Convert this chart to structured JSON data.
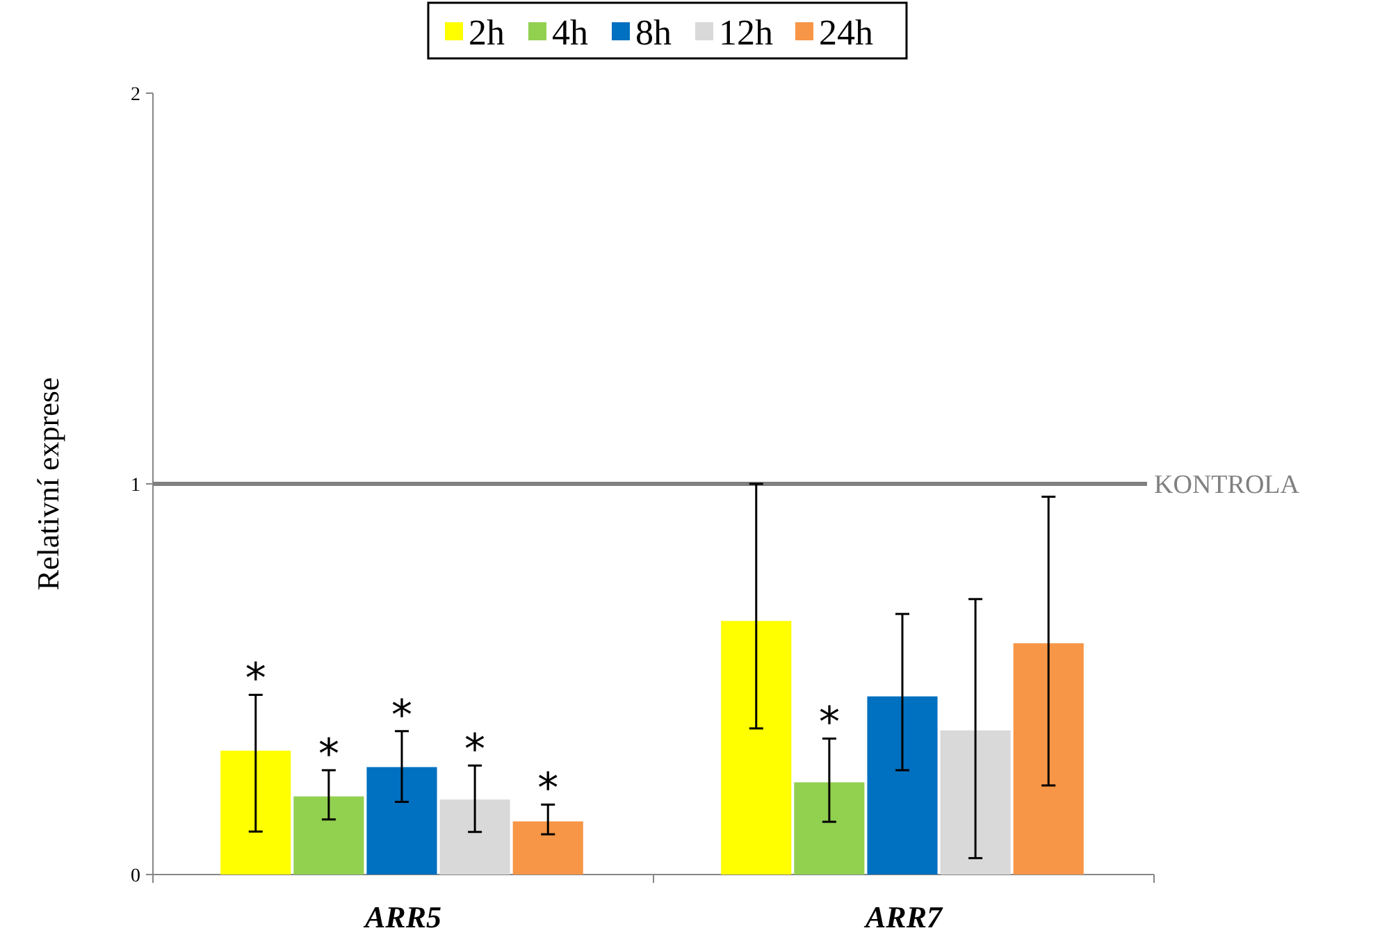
{
  "chart_data": {
    "type": "bar",
    "ylabel": "Relativní exprese",
    "categories": [
      "ARR5",
      "ARR7"
    ],
    "ylim": [
      0,
      2
    ],
    "yticks": [
      0,
      1,
      2
    ],
    "legend": "top",
    "series": [
      {
        "name": "2h",
        "color": "#ffff00",
        "values": [
          0.317,
          0.649
        ],
        "errors": [
          [
            0.11,
            0.46
          ],
          [
            0.374,
            1.0
          ]
        ],
        "value_labels": [
          "*",
          null
        ]
      },
      {
        "name": "4h",
        "color": "#92d050",
        "values": [
          0.2,
          0.236
        ],
        "errors": [
          [
            0.141,
            0.267
          ],
          [
            0.135,
            0.348
          ]
        ],
        "value_labels": [
          "*",
          "*"
        ]
      },
      {
        "name": "8h",
        "color": "#0070c0",
        "values": [
          0.275,
          0.456
        ],
        "errors": [
          [
            0.186,
            0.367
          ],
          [
            0.267,
            0.667
          ]
        ],
        "value_labels": [
          "*",
          null
        ]
      },
      {
        "name": "12h",
        "color": "#d9d9d9",
        "values": [
          0.192,
          0.369
        ],
        "errors": [
          [
            0.109,
            0.279
          ],
          [
            0.042,
            0.705
          ]
        ],
        "value_labels": [
          "*",
          null
        ]
      },
      {
        "name": "24h",
        "color": "#f79646",
        "values": [
          0.136,
          0.592
        ],
        "errors": [
          [
            0.103,
            0.179
          ],
          [
            0.228,
            0.967
          ]
        ],
        "value_labels": [
          "*",
          null
        ]
      }
    ],
    "ref_lines": [
      {
        "axis": "y",
        "value": 1,
        "label": "KONTROLA",
        "color": "#808080"
      }
    ]
  }
}
